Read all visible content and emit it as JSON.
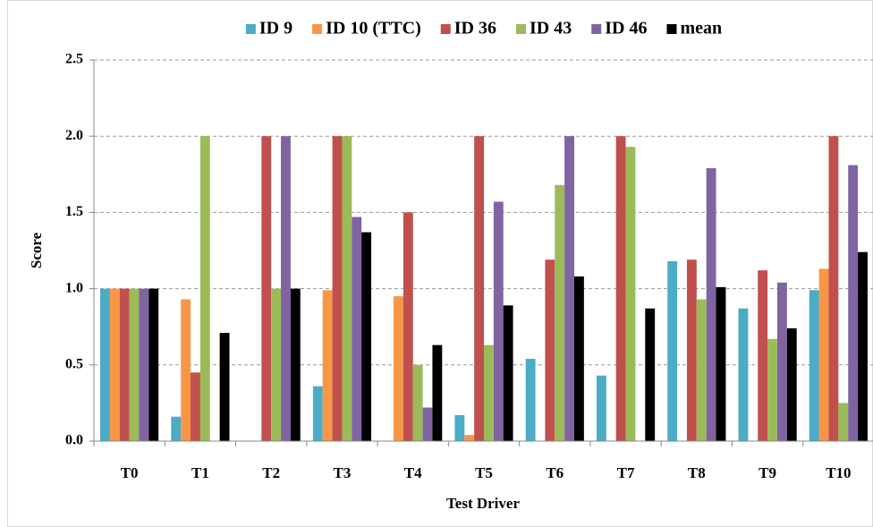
{
  "chart_data": {
    "type": "bar",
    "x_label": "Test Driver",
    "y_label": "Score",
    "categories": [
      "T0",
      "T1",
      "T2",
      "T3",
      "T4",
      "T5",
      "T6",
      "T7",
      "T8",
      "T9",
      "T10"
    ],
    "series": [
      {
        "name": "ID 9",
        "color": "#4bacc6",
        "values": [
          1.0,
          0.16,
          0,
          0.36,
          0,
          0.17,
          0.54,
          0.43,
          1.18,
          0.87,
          0.99
        ]
      },
      {
        "name": "ID 10 (TTC)",
        "color": "#f79646",
        "values": [
          1.0,
          0.93,
          0,
          0.99,
          0.95,
          0.04,
          0,
          0,
          0,
          0,
          1.13
        ]
      },
      {
        "name": "ID 36",
        "color": "#c0504d",
        "values": [
          1.0,
          0.45,
          2.0,
          2.0,
          1.5,
          2.0,
          1.19,
          2.0,
          1.19,
          1.12,
          2.0
        ]
      },
      {
        "name": "ID 43",
        "color": "#9bbb59",
        "values": [
          1.0,
          2.0,
          1.0,
          2.0,
          0.5,
          0.63,
          1.68,
          1.93,
          0.93,
          0.67,
          0.25
        ]
      },
      {
        "name": "ID 46",
        "color": "#8064a2",
        "values": [
          1.0,
          0,
          2.0,
          1.47,
          0.22,
          1.57,
          2.0,
          0,
          1.79,
          1.04,
          1.81
        ]
      },
      {
        "name": "mean",
        "color": "#000000",
        "values": [
          1.0,
          0.71,
          1.0,
          1.37,
          0.63,
          0.89,
          1.08,
          0.87,
          1.01,
          0.74,
          1.24
        ]
      }
    ],
    "ylim": [
      0,
      2.5
    ],
    "yticks": [
      {
        "value": 0,
        "label": "0.0"
      },
      0.5,
      {
        "value": 1,
        "label": "1.0"
      },
      1.5,
      {
        "value": 2,
        "label": "2.0"
      },
      2.5
    ],
    "grid": true,
    "legend": "top"
  }
}
